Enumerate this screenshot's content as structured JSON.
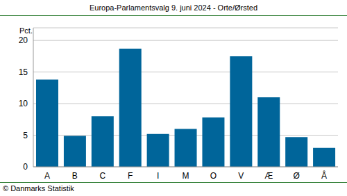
{
  "chart_data": {
    "type": "bar",
    "title": "Europa-Parlamentsvalg 9. juni 2024 - Orte/Ørsted",
    "y_label": "Pct.",
    "source": "© Danmarks Statistik",
    "categories": [
      "A",
      "B",
      "C",
      "F",
      "I",
      "M",
      "O",
      "V",
      "Æ",
      "Ø",
      "Å"
    ],
    "values": [
      13.8,
      4.9,
      8.0,
      18.7,
      5.2,
      6.0,
      7.8,
      17.5,
      11.0,
      4.7,
      3.0
    ],
    "color": "#00659a",
    "ylim": [
      0,
      22
    ],
    "yticks": [
      0,
      5,
      10,
      15,
      20
    ],
    "grid": true
  }
}
